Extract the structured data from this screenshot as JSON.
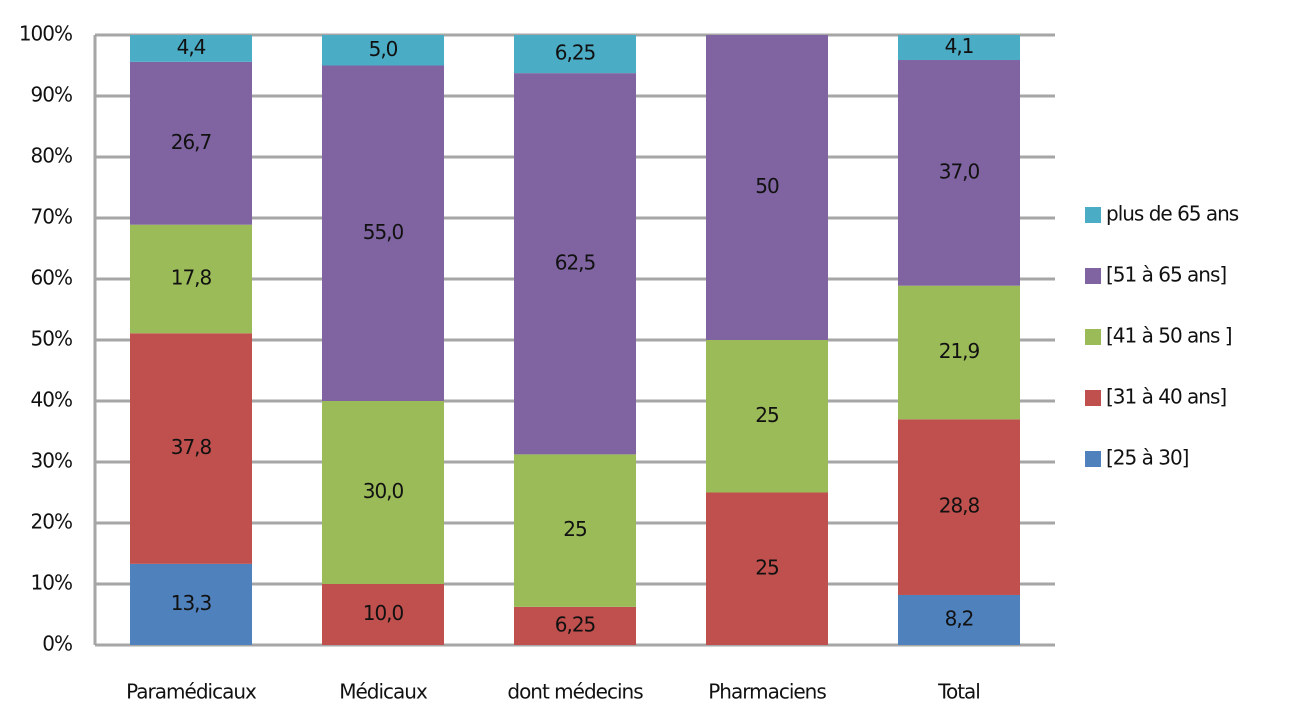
{
  "chart_data": {
    "type": "stacked_bar",
    "categories": [
      "Paramédicaux",
      "Médicaux",
      "dont médecins",
      "Pharmaciens",
      "Total"
    ],
    "series": [
      {
        "name": "[25 à 30]",
        "color": "#4f81bd",
        "values": [
          13.3,
          0,
          0,
          0,
          8.2
        ],
        "value_labels": [
          "13,3",
          null,
          null,
          null,
          "8,2"
        ]
      },
      {
        "name": "[31 à 40 ans]",
        "color": "#c0504d",
        "values": [
          37.8,
          10.0,
          6.25,
          25,
          28.8
        ],
        "value_labels": [
          "37,8",
          "10,0",
          "6,25",
          "25",
          "28,8"
        ]
      },
      {
        "name": "[41 à 50 ans ]",
        "color": "#9bbb59",
        "values": [
          17.8,
          30.0,
          25,
          25,
          21.9
        ],
        "value_labels": [
          "17,8",
          "30,0",
          "25",
          "25",
          "21,9"
        ]
      },
      {
        "name": "[51 à 65 ans]",
        "color": "#8064a2",
        "values": [
          26.7,
          55.0,
          62.5,
          50,
          37.0
        ],
        "value_labels": [
          "26,7",
          "55,0",
          "62,5",
          "50",
          "37,0"
        ]
      },
      {
        "name": "plus de 65 ans",
        "color": "#4bacc6",
        "values": [
          4.4,
          5.0,
          6.25,
          0,
          4.1
        ],
        "value_labels": [
          "4,4",
          "5,0",
          "6,25",
          null,
          "4,1"
        ]
      }
    ],
    "ylim": [
      0,
      100
    ],
    "yticks": [
      {
        "value": 0,
        "label": "0%"
      },
      {
        "value": 10,
        "label": "10%"
      },
      {
        "value": 20,
        "label": "20%"
      },
      {
        "value": 30,
        "label": "30%"
      },
      {
        "value": 40,
        "label": "40%"
      },
      {
        "value": 50,
        "label": "50%"
      },
      {
        "value": 60,
        "label": "60%"
      },
      {
        "value": 70,
        "label": "70%"
      },
      {
        "value": 80,
        "label": "80%"
      },
      {
        "value": 90,
        "label": "90%"
      },
      {
        "value": 100,
        "label": "100%"
      }
    ],
    "grid": true,
    "legend": "right"
  }
}
